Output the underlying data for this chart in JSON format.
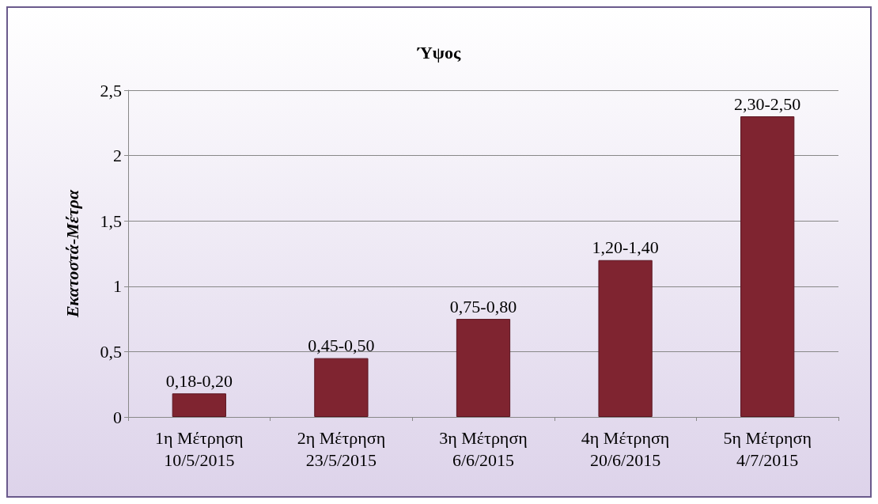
{
  "chart_data": {
    "type": "bar",
    "title": "Ύψος",
    "ylabel": "Εκατοστά-Μέτρα",
    "categories": [
      "1η Μέτρηση\n10/5/2015",
      "2η Μέτρηση\n23/5/2015",
      "3η Μέτρηση\n6/6/2015",
      "4η Μέτρηση\n20/6/2015",
      "5η Μέτρηση\n4/7/2015"
    ],
    "values": [
      0.18,
      0.45,
      0.75,
      1.2,
      2.3
    ],
    "value_labels": [
      "0,18-0,20",
      "0,45-0,50",
      "0,75-0,80",
      "1,20-1,40",
      "2,30-2,50"
    ],
    "color": "#7f2430",
    "ylim": [
      0,
      2.5
    ],
    "yticks": [
      0,
      {
        "value": 0.5,
        "label": "0,5"
      },
      1,
      {
        "value": 1.5,
        "label": "1,5"
      },
      2,
      {
        "value": 2.5,
        "label": "2,5"
      }
    ],
    "grid": "y"
  }
}
